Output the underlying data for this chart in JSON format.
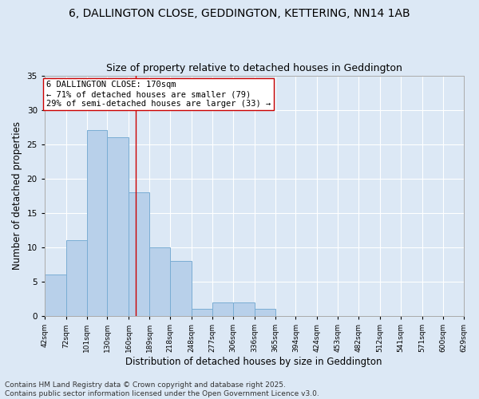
{
  "title1": "6, DALLINGTON CLOSE, GEDDINGTON, KETTERING, NN14 1AB",
  "title2": "Size of property relative to detached houses in Geddington",
  "xlabel": "Distribution of detached houses by size in Geddington",
  "ylabel": "Number of detached properties",
  "bar_values": [
    6,
    11,
    27,
    26,
    18,
    10,
    8,
    1,
    2,
    2,
    1,
    0,
    0,
    0,
    0,
    0,
    0,
    0,
    0,
    0
  ],
  "bin_edges": [
    42,
    72,
    101,
    130,
    160,
    189,
    218,
    248,
    277,
    306,
    336,
    365,
    394,
    424,
    453,
    482,
    512,
    541,
    571,
    600,
    629
  ],
  "tick_labels": [
    "42sqm",
    "72sqm",
    "101sqm",
    "130sqm",
    "160sqm",
    "189sqm",
    "218sqm",
    "248sqm",
    "277sqm",
    "306sqm",
    "336sqm",
    "365sqm",
    "394sqm",
    "424sqm",
    "453sqm",
    "482sqm",
    "512sqm",
    "541sqm",
    "571sqm",
    "600sqm",
    "629sqm"
  ],
  "bar_color": "#b8d0ea",
  "bar_edge_color": "#7aadd4",
  "vline_x": 170,
  "vline_color": "#cc0000",
  "annotation_text": "6 DALLINGTON CLOSE: 170sqm\n← 71% of detached houses are smaller (79)\n29% of semi-detached houses are larger (33) →",
  "annotation_box_color": "#ffffff",
  "annotation_box_edge": "#cc0000",
  "ylim": [
    0,
    35
  ],
  "yticks": [
    0,
    5,
    10,
    15,
    20,
    25,
    30,
    35
  ],
  "background_color": "#dce8f5",
  "fig_background_color": "#dce8f5",
  "grid_color": "#ffffff",
  "footer_text": "Contains HM Land Registry data © Crown copyright and database right 2025.\nContains public sector information licensed under the Open Government Licence v3.0.",
  "title_fontsize": 10,
  "subtitle_fontsize": 9,
  "tick_fontsize": 6.5,
  "label_fontsize": 8.5,
  "annotation_fontsize": 7.5,
  "footer_fontsize": 6.5
}
